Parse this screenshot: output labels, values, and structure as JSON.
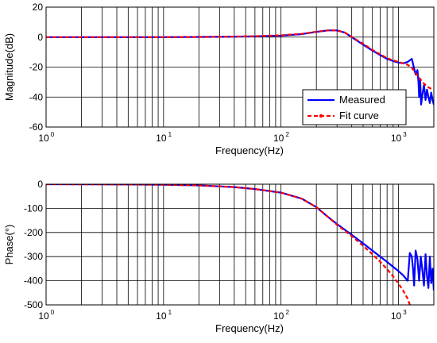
{
  "figure": {
    "background": "#ffffff"
  },
  "chart_data": [
    {
      "type": "line",
      "xscale": "log",
      "xlim": [
        1,
        2000
      ],
      "ylim": [
        -60,
        20
      ],
      "xlabel": "Frequency(Hz)",
      "ylabel": "Magnitude(dB)",
      "grid": true,
      "xtick_labels": [
        {
          "base": "10",
          "exp": "0"
        },
        {
          "base": "10",
          "exp": "1"
        },
        {
          "base": "10",
          "exp": "2"
        },
        {
          "base": "10",
          "exp": "3"
        }
      ],
      "xtick_values": [
        1,
        10,
        100,
        1000
      ],
      "ytick_values": [
        -60,
        -40,
        -20,
        0,
        20
      ],
      "ytick_labels": [
        "-60",
        "-40",
        "-20",
        "0",
        "20"
      ],
      "legend": {
        "position": "lower-right",
        "entries": [
          "Measured",
          "Fit curve"
        ]
      },
      "series": [
        {
          "name": "Measured",
          "color": "#0000ff",
          "style": "solid",
          "x": [
            1,
            3,
            10,
            30,
            60,
            100,
            150,
            200,
            250,
            300,
            350,
            400,
            500,
            600,
            700,
            800,
            900,
            1000,
            1100,
            1200,
            1300,
            1350,
            1400,
            1450,
            1480,
            1500,
            1530,
            1560,
            1600,
            1650,
            1700,
            1750,
            1800,
            1850,
            1900,
            1950,
            2000
          ],
          "y": [
            0,
            0,
            0,
            0.2,
            0.5,
            1,
            2,
            3.5,
            4.5,
            4.5,
            3,
            0,
            -5,
            -9,
            -12,
            -14.5,
            -16,
            -17,
            -17.5,
            -16.5,
            -14.5,
            -20,
            -25,
            -22,
            -30,
            -40,
            -28,
            -45,
            -38,
            -32,
            -42,
            -35,
            -40,
            -44,
            -37,
            -42,
            -45
          ]
        },
        {
          "name": "Fit curve",
          "color": "#ff0000",
          "style": "dashed",
          "x": [
            1,
            3,
            10,
            30,
            60,
            100,
            150,
            200,
            250,
            300,
            350,
            400,
            500,
            600,
            700,
            800,
            900,
            1000,
            1100,
            1200,
            1300,
            1400,
            1500,
            1600,
            1700,
            1800,
            1900,
            2000
          ],
          "y": [
            0,
            0,
            0,
            0.2,
            0.6,
            1.2,
            2.2,
            3.6,
            4.5,
            4.5,
            3,
            0.2,
            -4.5,
            -8.5,
            -11.5,
            -14,
            -15.5,
            -16.5,
            -17.5,
            -18.5,
            -20.5,
            -24,
            -27,
            -30,
            -32,
            -33.5,
            -34.5,
            -35
          ]
        }
      ]
    },
    {
      "type": "line",
      "xscale": "log",
      "xlim": [
        1,
        2000
      ],
      "ylim": [
        -500,
        0
      ],
      "xlabel": "Frequency(Hz)",
      "ylabel": "Phase(°)",
      "grid": true,
      "xtick_labels": [
        {
          "base": "10",
          "exp": "0"
        },
        {
          "base": "10",
          "exp": "1"
        },
        {
          "base": "10",
          "exp": "2"
        },
        {
          "base": "10",
          "exp": "3"
        }
      ],
      "xtick_values": [
        1,
        10,
        100,
        1000
      ],
      "ytick_values": [
        -500,
        -400,
        -300,
        -200,
        -100,
        0
      ],
      "ytick_labels": [
        "-500",
        "-400",
        "-300",
        "-200",
        "-100",
        "0"
      ],
      "series": [
        {
          "name": "Measured",
          "color": "#0000ff",
          "style": "solid",
          "x": [
            1,
            3,
            10,
            20,
            40,
            60,
            100,
            150,
            200,
            250,
            300,
            400,
            500,
            600,
            700,
            800,
            900,
            1000,
            1100,
            1150,
            1200,
            1250,
            1300,
            1330,
            1360,
            1400,
            1450,
            1500,
            1550,
            1600,
            1650,
            1700,
            1750,
            1800,
            1850,
            1900,
            1950,
            2000
          ],
          "y": [
            0,
            -0.5,
            -2,
            -5,
            -12,
            -20,
            -35,
            -60,
            -95,
            -135,
            -165,
            -210,
            -245,
            -275,
            -300,
            -322,
            -342,
            -360,
            -378,
            -390,
            -400,
            -285,
            -300,
            -350,
            -420,
            -275,
            -310,
            -400,
            -300,
            -360,
            -420,
            -290,
            -380,
            -430,
            -300,
            -410,
            -350,
            -440
          ]
        },
        {
          "name": "Fit curve",
          "color": "#ff0000",
          "style": "dashed",
          "x": [
            1,
            3,
            10,
            20,
            40,
            60,
            100,
            150,
            200,
            250,
            300,
            400,
            500,
            600,
            700,
            800,
            900,
            1000,
            1100,
            1200,
            1250
          ],
          "y": [
            0,
            -0.5,
            -2,
            -5,
            -12,
            -20,
            -35,
            -60,
            -95,
            -135,
            -168,
            -215,
            -255,
            -290,
            -322,
            -352,
            -382,
            -412,
            -442,
            -475,
            -500
          ]
        }
      ]
    }
  ]
}
